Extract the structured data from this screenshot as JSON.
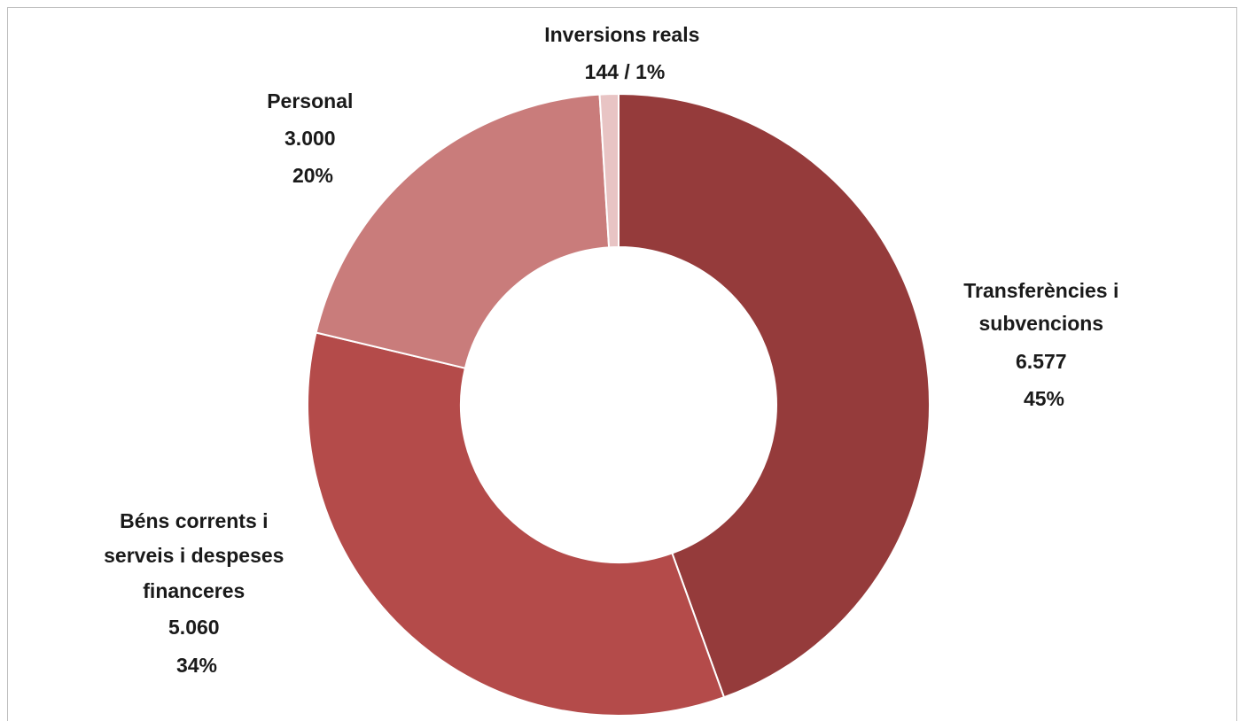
{
  "chart_data": {
    "type": "pie",
    "donut": true,
    "title": "",
    "slices": [
      {
        "label": "Transferències i subvencions",
        "value": 6577,
        "value_text": "6.577",
        "percent_text": "45%",
        "color": "#953b3b"
      },
      {
        "label": "Béns corrents i serveis i despeses financeres",
        "value": 5060,
        "value_text": "5.060",
        "percent_text": "34%",
        "color": "#b44b4a"
      },
      {
        "label": "Personal",
        "value": 3000,
        "value_text": "3.000",
        "percent_text": "20%",
        "color": "#c97c7b"
      },
      {
        "label": "Inversions reals",
        "value": 144,
        "value_text": "144 / 1%",
        "percent_text": "",
        "color": "#e8c4c4"
      }
    ],
    "labels": {
      "transferencies": [
        "Transferències i",
        "subvencions",
        "6.577",
        "45%"
      ],
      "bens": [
        "Béns corrents i",
        "serveis i despeses",
        "financeres",
        "5.060",
        "34%"
      ],
      "personal": [
        "Personal",
        "3.000",
        "20%"
      ],
      "inversions": [
        "Inversions reals",
        "144 / 1%"
      ]
    }
  }
}
